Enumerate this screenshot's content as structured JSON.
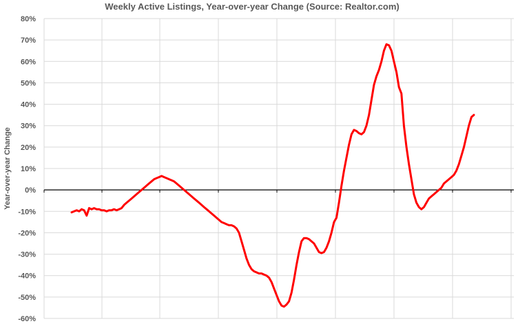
{
  "chart_data": {
    "type": "line",
    "title": "Weekly Active Listings, Year-over-year Change (Source: Realtor.com)",
    "xlabel": "",
    "ylabel": "Year-over-year Change",
    "ylim": [
      -60,
      80
    ],
    "y_ticks": [
      "80%",
      "70%",
      "60%",
      "50%",
      "40%",
      "30%",
      "20%",
      "10%",
      "0%",
      "-10%",
      "-20%",
      "-30%",
      "-40%",
      "-50%",
      "-60%"
    ],
    "y_tick_values": [
      80,
      70,
      60,
      50,
      40,
      30,
      20,
      10,
      0,
      -10,
      -20,
      -30,
      -40,
      -50,
      -60
    ],
    "x_tick_labels": [],
    "grid": true,
    "legend": "none",
    "colors": {
      "series": "#ff0000",
      "grid": "#d9d9d9",
      "axis": "#000000",
      "text": "#595959"
    },
    "series": [
      {
        "values": [
          -10.5,
          -10,
          -9.5,
          -10,
          -9,
          -9.5,
          -12,
          -8.5,
          -9,
          -8.5,
          -9,
          -9,
          -9.5,
          -9.5,
          -10,
          -9.5,
          -9.5,
          -9,
          -9.5,
          -9,
          -8.5,
          -7,
          -6,
          -5,
          -4,
          -3,
          -2,
          -1,
          0,
          1,
          2,
          3,
          4,
          5,
          5.5,
          6,
          6.5,
          6,
          5.5,
          5,
          4.5,
          4,
          3,
          2,
          1,
          0,
          -1,
          -2,
          -3,
          -4,
          -5,
          -6,
          -7,
          -8,
          -9,
          -10,
          -11,
          -12,
          -13,
          -14,
          -15,
          -15.5,
          -16,
          -16.5,
          -16.5,
          -17,
          -18,
          -20,
          -24,
          -28,
          -32,
          -35,
          -37,
          -38,
          -38.5,
          -39,
          -39,
          -39.5,
          -40,
          -41,
          -43,
          -46,
          -49,
          -52,
          -54,
          -54.5,
          -53.5,
          -52,
          -48,
          -42,
          -35,
          -29,
          -24,
          -22.5,
          -22.5,
          -23,
          -24,
          -25,
          -27,
          -29,
          -29.5,
          -29,
          -27,
          -24,
          -20,
          -15,
          -13,
          -6,
          2,
          9,
          15,
          21,
          26,
          28,
          27.5,
          26.5,
          26,
          27,
          30,
          35,
          42,
          49,
          53,
          56,
          60,
          65,
          68,
          67.5,
          65,
          60,
          55,
          48,
          45,
          30,
          20,
          12,
          5,
          -2,
          -6,
          -8,
          -9,
          -8,
          -6,
          -4,
          -3,
          -2,
          -1,
          0,
          1,
          3,
          4,
          5,
          6,
          7,
          9,
          12,
          16,
          20,
          25,
          30,
          34,
          35
        ]
      }
    ]
  }
}
